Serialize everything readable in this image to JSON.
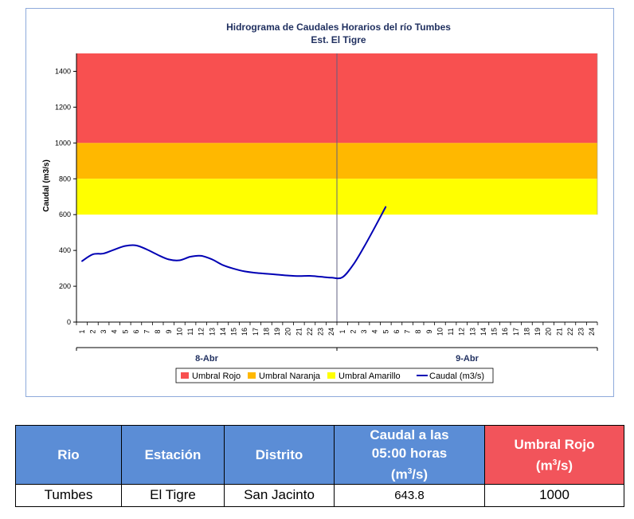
{
  "chart_data": {
    "type": "line",
    "title": "Hidrograma de Caudales Horarios del río Tumbes",
    "subtitle": "Est. El Tigre",
    "ylabel": "Caudal  (m3/s)",
    "ylim": [
      0,
      1500
    ],
    "yticks": [
      0,
      200,
      400,
      600,
      800,
      1000,
      1200,
      1400
    ],
    "x_tick_labels": [
      "1",
      "2",
      "3",
      "4",
      "5",
      "6",
      "7",
      "8",
      "9",
      "10",
      "11",
      "12",
      "13",
      "14",
      "15",
      "16",
      "17",
      "18",
      "19",
      "20",
      "21",
      "22",
      "23",
      "24",
      "1",
      "2",
      "3",
      "4",
      "5",
      "6",
      "7",
      "8",
      "9",
      "10",
      "11",
      "12",
      "13",
      "14",
      "15",
      "16",
      "17",
      "18",
      "19",
      "20",
      "21",
      "22",
      "23",
      "24"
    ],
    "day_labels": [
      "8-Abr",
      "9-Abr"
    ],
    "thresholds": [
      {
        "name": "Umbral Rojo",
        "from": 1000,
        "to": 1500,
        "color": "#f85050"
      },
      {
        "name": "Umbral Naranja",
        "from": 800,
        "to": 1000,
        "color": "#ffb800"
      },
      {
        "name": "Umbral Amarillo",
        "from": 600,
        "to": 800,
        "color": "#ffff00"
      }
    ],
    "series": [
      {
        "name": "Caudal (m3/s)",
        "color": "#0000b4",
        "x": [
          1,
          2,
          3,
          4,
          5,
          6,
          7,
          8,
          9,
          10,
          11,
          12,
          13,
          14,
          15,
          16,
          17,
          18,
          19,
          20,
          21,
          22,
          23,
          24,
          25,
          26,
          27,
          28,
          29
        ],
        "values": [
          340,
          378,
          383,
          405,
          425,
          428,
          405,
          375,
          350,
          345,
          365,
          370,
          350,
          318,
          298,
          283,
          275,
          270,
          265,
          260,
          257,
          258,
          253,
          248,
          250,
          320,
          420,
          530,
          643.8
        ]
      }
    ],
    "legend_position": "bottom",
    "grid": false
  },
  "table": {
    "headers": [
      "Rio",
      "Estación",
      "Distrito",
      "Caudal a las 05:00 horas (m3/s)",
      "Umbral Rojo (m3/s)"
    ],
    "header_caudal_line1": "Caudal a las",
    "header_caudal_line2": "05:00 horas",
    "header_caudal_unit": "(m",
    "header_caudal_sup": "3",
    "header_caudal_unit_end": "/s)",
    "header_umbral_line1": "Umbral Rojo",
    "header_umbral_unit": "(m",
    "header_umbral_sup": "3",
    "header_umbral_unit_end": "/s)",
    "row": [
      "Tumbes",
      "El Tigre",
      "San Jacinto",
      "643.8",
      "1000"
    ]
  }
}
